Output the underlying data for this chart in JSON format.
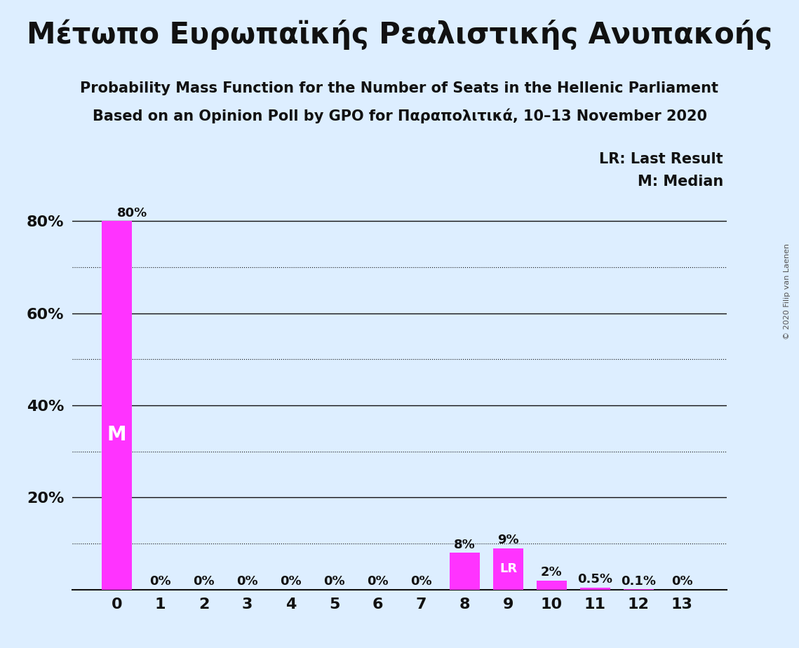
{
  "title_greek": "Μέτωπο Ευρωπαϊκής Ρεαλιστικής Ανυπακοής",
  "subtitle1": "Probability Mass Function for the Number of Seats in the Hellenic Parliament",
  "subtitle2": "Based on an Opinion Poll by GPO for Παραπολιτικά, 10–13 November 2020",
  "copyright": "© 2020 Filip van Laenen",
  "categories": [
    0,
    1,
    2,
    3,
    4,
    5,
    6,
    7,
    8,
    9,
    10,
    11,
    12,
    13
  ],
  "values": [
    80,
    0,
    0,
    0,
    0,
    0,
    0,
    0,
    8,
    9,
    2,
    0.5,
    0.1,
    0
  ],
  "bar_color": "#ff33ff",
  "background_color": "#ddeeff",
  "median_seat": 0,
  "lr_seat": 9,
  "label_lr": "LR",
  "label_median": "M",
  "legend_lr": "LR: Last Result",
  "legend_m": "M: Median",
  "ylim_max": 90,
  "solid_gridlines": [
    20,
    40,
    60,
    80
  ],
  "dotted_gridlines": [
    10,
    30,
    50,
    70
  ],
  "title_fontsize": 30,
  "subtitle_fontsize": 15,
  "bar_label_fontsize": 13,
  "axis_tick_fontsize": 16,
  "legend_fontsize": 15,
  "bar_labels": [
    "80%",
    "0%",
    "0%",
    "0%",
    "0%",
    "0%",
    "0%",
    "0%",
    "8%",
    "9%",
    "2%",
    "0.5%",
    "0.1%",
    "0%"
  ]
}
